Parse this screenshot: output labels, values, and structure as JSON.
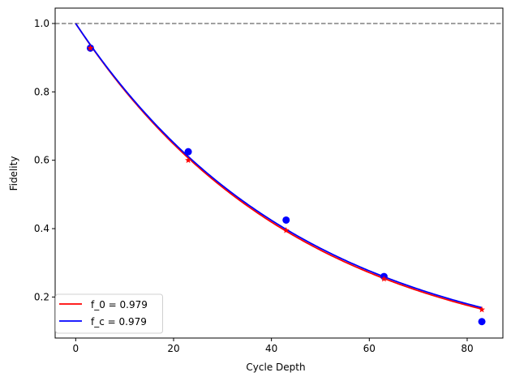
{
  "chart_data": {
    "type": "scatter",
    "title": "",
    "xlabel": "Cycle Depth",
    "ylabel": "Fidelity",
    "xlim": [
      -4.2,
      87.3
    ],
    "ylim": [
      0.08,
      1.045
    ],
    "xticks": [
      0,
      20,
      40,
      60,
      80
    ],
    "yticks": [
      0.2,
      0.4,
      0.6,
      0.8,
      1.0
    ],
    "xtick_labels": [
      "0",
      "20",
      "40",
      "60",
      "80"
    ],
    "ytick_labels": [
      "0.2",
      "0.4",
      "0.6",
      "0.8",
      "1.0"
    ],
    "reference_line": {
      "y": 1.0,
      "style": "dashed",
      "color": "#808080"
    },
    "series": [
      {
        "name": "f_0 = 0.979",
        "color": "#ff0000",
        "marker": "star",
        "x": [
          3,
          23,
          43,
          63,
          83
        ],
        "y": [
          0.928,
          0.6,
          0.395,
          0.253,
          0.163
        ],
        "fit": {
          "f": 0.9785,
          "x_range": [
            0,
            83
          ]
        }
      },
      {
        "name": "f_c = 0.979",
        "color": "#0000ff",
        "marker": "circle",
        "x": [
          3,
          23,
          43,
          63,
          83
        ],
        "y": [
          0.928,
          0.625,
          0.425,
          0.26,
          0.128
        ],
        "fit": {
          "f": 0.9788,
          "x_range": [
            0,
            83
          ]
        }
      }
    ],
    "legend": {
      "position": "lower-left",
      "entries": [
        "f_0 = 0.979",
        "f_c = 0.979"
      ]
    },
    "grid": false
  }
}
